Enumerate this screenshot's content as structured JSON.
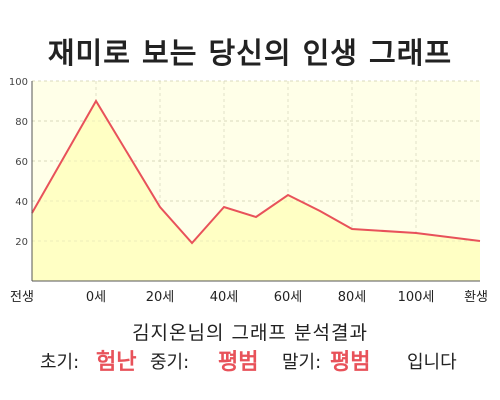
{
  "title": "재미로 보는 당신의 인생 그래프",
  "chart_data": {
    "type": "area",
    "x_labels": [
      "전생",
      "0세",
      "20세",
      "40세",
      "60세",
      "80세",
      "100세",
      "환생"
    ],
    "x": [
      -20,
      0,
      20,
      30,
      40,
      50,
      60,
      70,
      80,
      100,
      120
    ],
    "y": [
      34,
      90,
      37,
      19,
      37,
      32,
      43,
      35,
      26,
      24,
      20
    ],
    "y_ticks": [
      20,
      40,
      60,
      80,
      100
    ],
    "ylim": [
      0,
      100
    ],
    "xlim": [
      -20,
      120
    ],
    "grid": true,
    "colors": {
      "line": "#e8525a",
      "fill": "#ffffc4",
      "plot_bg": "#ffffe8",
      "grid": "#e0e0c8",
      "axis": "#555555"
    }
  },
  "result": {
    "title": "김지온님의 그래프 분석결과",
    "early_label": "초기:",
    "early_value": "험난",
    "mid_label": "중기:",
    "mid_value": "평범",
    "late_label": "말기:",
    "late_value": "평범",
    "suffix": "입니다"
  }
}
